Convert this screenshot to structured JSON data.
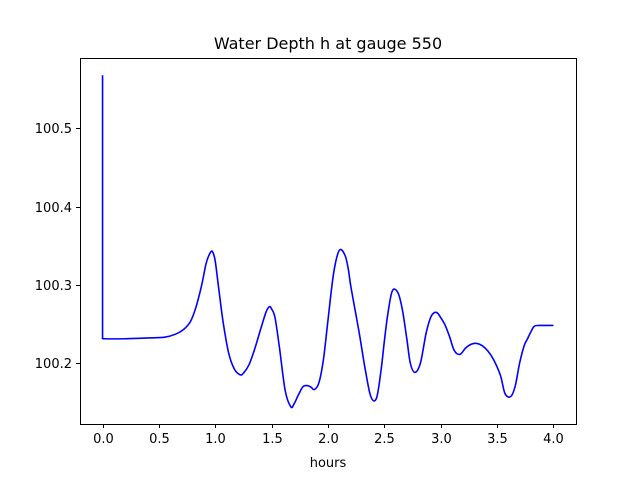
{
  "chart_data": {
    "type": "line",
    "title": "Water Depth h at gauge 550",
    "xlabel": "hours",
    "ylabel": "",
    "xlim": [
      -0.2,
      4.2
    ],
    "ylim": [
      100.122,
      100.59
    ],
    "grid": false,
    "x_ticks": [
      0.0,
      0.5,
      1.0,
      1.5,
      2.0,
      2.5,
      3.0,
      3.5,
      4.0
    ],
    "x_tick_labels": [
      "0.0",
      "0.5",
      "1.0",
      "1.5",
      "2.0",
      "2.5",
      "3.0",
      "3.5",
      "4.0"
    ],
    "y_ticks": [
      100.2,
      100.3,
      100.4,
      100.5
    ],
    "y_tick_labels": [
      "100.2",
      "100.3",
      "100.4",
      "100.5"
    ],
    "series": [
      {
        "color": "#0000ff",
        "x": [
          0.0,
          0.0,
          0.02,
          0.2,
          0.4,
          0.55,
          0.65,
          0.72,
          0.78,
          0.83,
          0.88,
          0.92,
          0.96,
          0.98,
          1.0,
          1.03,
          1.07,
          1.12,
          1.17,
          1.22,
          1.25,
          1.3,
          1.35,
          1.4,
          1.45,
          1.48,
          1.5,
          1.53,
          1.57,
          1.62,
          1.67,
          1.7,
          1.74,
          1.78,
          1.82,
          1.85,
          1.88,
          1.92,
          1.96,
          2.0,
          2.05,
          2.1,
          2.15,
          2.18,
          2.2,
          2.24,
          2.28,
          2.33,
          2.38,
          2.43,
          2.47,
          2.5,
          2.53,
          2.57,
          2.62,
          2.66,
          2.7,
          2.73,
          2.77,
          2.82,
          2.87,
          2.91,
          2.94,
          2.97,
          3.0,
          3.04,
          3.08,
          3.12,
          3.17,
          3.22,
          3.27,
          3.32,
          3.37,
          3.42,
          3.47,
          3.53,
          3.57,
          3.62,
          3.66,
          3.7,
          3.74,
          3.77,
          3.8,
          3.83,
          3.87,
          3.92,
          3.97,
          4.0
        ],
        "y": [
          100.568,
          100.232,
          100.231,
          100.231,
          100.232,
          100.233,
          100.237,
          100.243,
          100.253,
          100.272,
          100.3,
          100.328,
          100.342,
          100.341,
          100.33,
          100.296,
          100.252,
          100.212,
          100.192,
          100.185,
          100.187,
          100.198,
          100.218,
          100.242,
          100.265,
          100.272,
          100.269,
          100.258,
          100.219,
          100.165,
          100.144,
          100.148,
          100.16,
          100.17,
          100.171,
          100.169,
          100.166,
          100.175,
          100.205,
          100.255,
          100.315,
          100.344,
          100.338,
          100.32,
          100.3,
          100.268,
          100.236,
          100.192,
          100.157,
          100.155,
          100.19,
          100.228,
          100.262,
          100.292,
          100.29,
          100.268,
          100.23,
          100.2,
          100.188,
          100.2,
          100.238,
          100.258,
          100.264,
          100.264,
          100.258,
          100.248,
          100.233,
          100.216,
          100.211,
          100.219,
          100.224,
          100.225,
          100.222,
          100.215,
          100.204,
          100.184,
          100.161,
          100.157,
          100.17,
          100.2,
          100.222,
          100.231,
          100.24,
          100.247,
          100.248,
          100.248,
          100.248,
          100.248
        ]
      }
    ]
  }
}
